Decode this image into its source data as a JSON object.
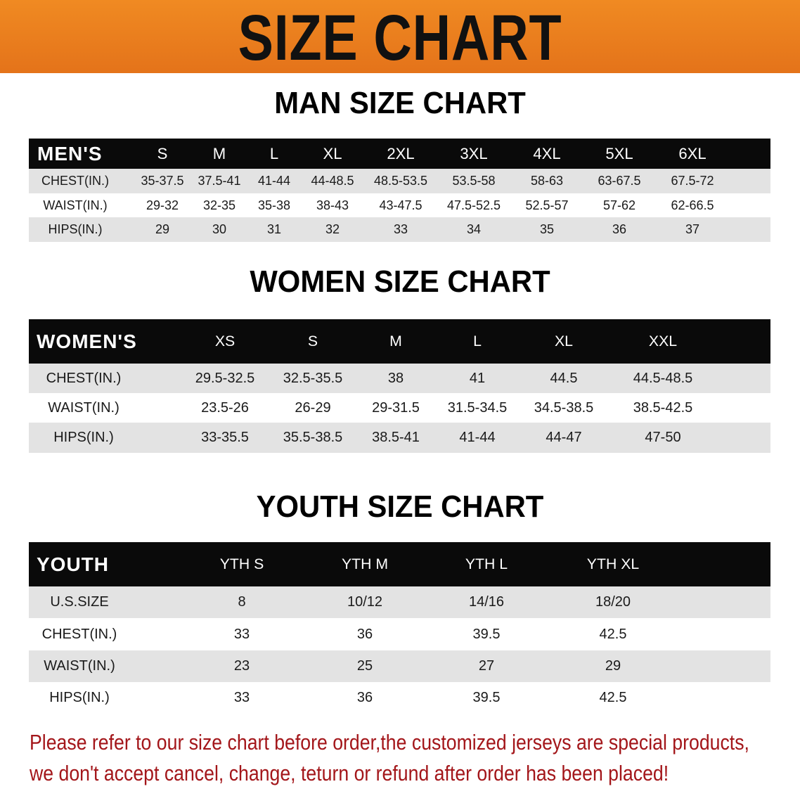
{
  "banner": {
    "title": "SIZE CHART",
    "color": "#e97c1d"
  },
  "tables": [
    {
      "title": "MAN SIZE CHART",
      "header": [
        "MEN'S",
        "S",
        "M",
        "L",
        "XL",
        "2XL",
        "3XL",
        "4XL",
        "5XL",
        "6XL"
      ],
      "rows": [
        [
          "CHEST(IN.)",
          "35-37.5",
          "37.5-41",
          "41-44",
          "44-48.5",
          "48.5-53.5",
          "53.5-58",
          "58-63",
          "63-67.5",
          "67.5-72"
        ],
        [
          "WAIST(IN.)",
          "29-32",
          "32-35",
          "35-38",
          "38-43",
          "43-47.5",
          "47.5-52.5",
          "52.5-57",
          "57-62",
          "62-66.5"
        ],
        [
          "HIPS(IN.)",
          "29",
          "30",
          "31",
          "32",
          "33",
          "34",
          "35",
          "36",
          "37"
        ]
      ]
    },
    {
      "title": "WOMEN SIZE CHART",
      "header": [
        "WOMEN'S",
        "XS",
        "S",
        "M",
        "L",
        "XL",
        "XXL"
      ],
      "rows": [
        [
          "CHEST(IN.)",
          "29.5-32.5",
          "32.5-35.5",
          "38",
          "41",
          "44.5",
          "44.5-48.5"
        ],
        [
          "WAIST(IN.)",
          "23.5-26",
          "26-29",
          "29-31.5",
          "31.5-34.5",
          "34.5-38.5",
          "38.5-42.5"
        ],
        [
          "HIPS(IN.)",
          "33-35.5",
          "35.5-38.5",
          "38.5-41",
          "41-44",
          "44-47",
          "47-50"
        ]
      ]
    },
    {
      "title": "YOUTH SIZE CHART",
      "header": [
        "YOUTH",
        "YTH S",
        "YTH M",
        "YTH L",
        "YTH XL"
      ],
      "rows": [
        [
          "U.S.SIZE",
          "8",
          "10/12",
          "14/16",
          "18/20"
        ],
        [
          "CHEST(IN.)",
          "33",
          "36",
          "39.5",
          "42.5"
        ],
        [
          "WAIST(IN.)",
          "23",
          "25",
          "27",
          "29"
        ],
        [
          "HIPS(IN.)",
          "33",
          "36",
          "39.5",
          "42.5"
        ]
      ]
    }
  ],
  "note": {
    "line1": "Please refer to our size chart before order,the customized jerseys are special products,",
    "line2": "we don't accept cancel, change, teturn or refund after order has been placed!",
    "color": "#a3161a"
  }
}
